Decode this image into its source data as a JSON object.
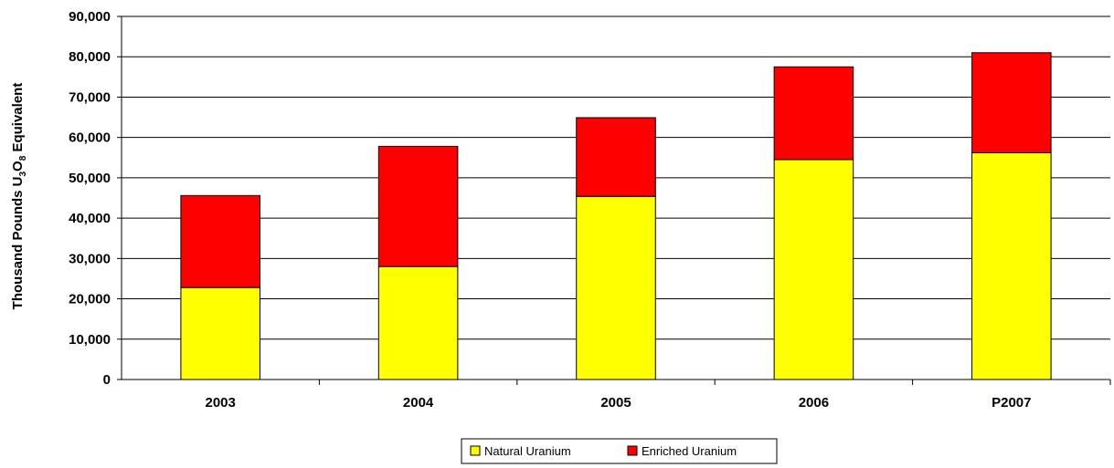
{
  "chart_data": {
    "type": "bar",
    "stacked": true,
    "title": "",
    "xlabel": "",
    "ylabel_parts": [
      "Thousand Pounds U",
      "3",
      "O",
      "8",
      " Equivalent"
    ],
    "categories": [
      "2003",
      "2004",
      "2005",
      "2006",
      "P2007"
    ],
    "series": [
      {
        "name": "Natural Uranium",
        "color": "#ffff00",
        "values": [
          22800,
          28000,
          45400,
          54500,
          56200
        ]
      },
      {
        "name": "Enriched Uranium",
        "color": "#ff0000",
        "values": [
          22800,
          29800,
          19500,
          23000,
          24800
        ]
      }
    ],
    "ylim": [
      0,
      90000
    ],
    "yticks": [
      0,
      10000,
      20000,
      30000,
      40000,
      50000,
      60000,
      70000,
      80000,
      90000
    ],
    "ytick_labels": [
      "0",
      "10,000",
      "20,000",
      "30,000",
      "40,000",
      "50,000",
      "60,000",
      "70,000",
      "80,000",
      "90,000"
    ],
    "grid": true,
    "legend_position": "bottom-center"
  }
}
